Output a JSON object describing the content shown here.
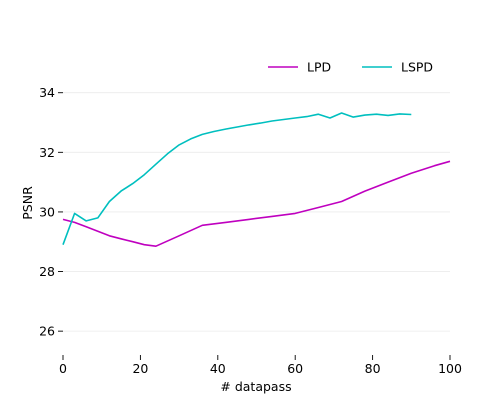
{
  "chart_data": {
    "type": "line",
    "title": "",
    "xlabel": "# datapass",
    "ylabel": "PSNR",
    "xlim": [
      0,
      100
    ],
    "ylim": [
      25.2,
      35.5
    ],
    "xticks": [
      0,
      20,
      40,
      60,
      80,
      100
    ],
    "yticks": [
      26,
      28,
      30,
      32,
      34
    ],
    "grid": "horizontal",
    "legend_position": "top-right",
    "series": [
      {
        "name": "LPD",
        "color": "#bf00bf",
        "x": [
          0,
          3,
          6,
          9,
          12,
          15,
          18,
          21,
          24,
          30,
          36,
          42,
          48,
          54,
          60,
          66,
          72,
          78,
          84,
          90,
          96,
          100
        ],
        "y": [
          29.75,
          29.65,
          29.5,
          29.35,
          29.2,
          29.1,
          29.0,
          28.9,
          28.85,
          29.2,
          29.55,
          29.65,
          29.75,
          29.85,
          29.95,
          30.15,
          30.35,
          30.7,
          31.0,
          31.3,
          31.55,
          31.7
        ]
      },
      {
        "name": "LSPD",
        "color": "#00bfbf",
        "x": [
          0,
          3,
          6,
          9,
          12,
          15,
          18,
          21,
          24,
          27,
          30,
          33,
          36,
          39,
          42,
          45,
          48,
          51,
          54,
          57,
          60,
          63,
          66,
          69,
          72,
          75,
          78,
          81,
          84,
          87,
          90
        ],
        "y": [
          28.9,
          29.95,
          29.7,
          29.8,
          30.35,
          30.7,
          30.95,
          31.25,
          31.6,
          31.95,
          32.25,
          32.45,
          32.6,
          32.7,
          32.78,
          32.85,
          32.92,
          32.98,
          33.05,
          33.1,
          33.15,
          33.2,
          33.28,
          33.15,
          33.32,
          33.18,
          33.25,
          33.28,
          33.24,
          33.29,
          33.27
        ]
      }
    ]
  }
}
